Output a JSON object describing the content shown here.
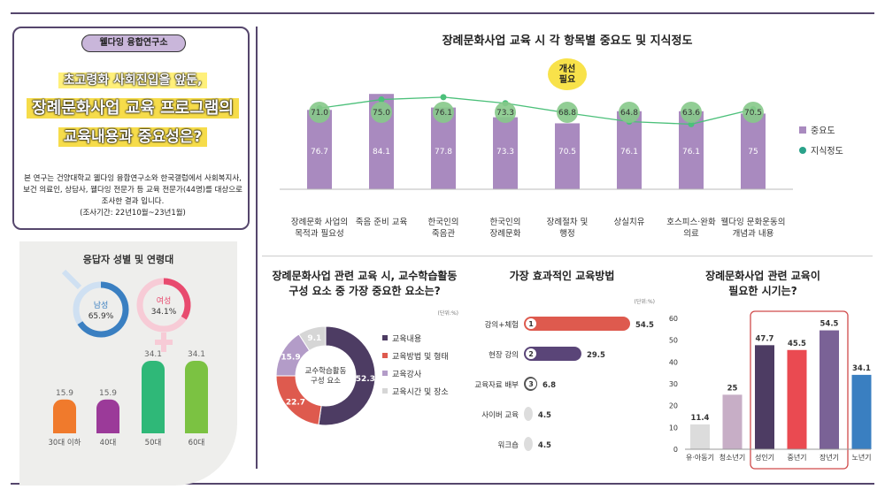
{
  "intro": {
    "badge": "웰다잉 융합연구소",
    "headline1": "초고령화 사회진입을 앞둔,",
    "headline2": "장례문화사업 교육 프로그램의",
    "headline3": "교육내용과 중요성은?",
    "description1": "본 연구는 건양대학교 웰다잉 융합연구소와 한국갤럽에서 사회복지사,",
    "description2": "보건 의료인, 상담사, 웰다잉 전문가 등 교육 전문가(44명)를 대상으로",
    "description3": "조사한 결과 입니다.",
    "period": "(조사기간: 22년10월~23년1월)"
  },
  "colors": {
    "frame": "#55466c",
    "importance": "#a98abf",
    "knowledge": "#4cc07a",
    "knowledge_dot": "#86c98a"
  },
  "chart_data": [
    {
      "type": "bar",
      "title": "장례문화사업 교육 시 각 항목별 중요도 및 지식정도",
      "categories": [
        "장례문화 사업의\n목적과 필요성",
        "죽음 준비 교육",
        "한국인의\n죽음관",
        "한국인의\n장례문화",
        "장례절차 및\n행정",
        "상실치유",
        "호스피스·완화\n의료",
        "웰다잉 문화운동의\n개념과 내용"
      ],
      "series": [
        {
          "name": "중요도",
          "values": [
            76.7,
            84.1,
            77.8,
            73.3,
            70.5,
            76.1,
            76.1,
            75
          ]
        },
        {
          "name": "지식정도",
          "values": [
            71.0,
            75.0,
            76.1,
            73.3,
            68.8,
            64.8,
            63.6,
            70.5
          ]
        }
      ],
      "callout": "개선\n필요",
      "callout_category": "장례절차 및\n행정",
      "legend": "right",
      "ylim": [
        0,
        100
      ]
    },
    {
      "type": "pie",
      "title": "장례문화사업 관련 교육 시, 교수학습활동\n구성 요소 중 가장 중요한 요소는?",
      "unit": "(단위:%)",
      "center_label": "교수학습활동\n구성 요소",
      "labels": [
        "교육내용",
        "교육방법 및 형태",
        "교육강사",
        "교육시간 및 장소"
      ],
      "values": [
        52.3,
        22.7,
        15.9,
        9.1
      ],
      "colors": [
        "#4d3c63",
        "#de5a4e",
        "#b39cc8",
        "#d6d6d6"
      ]
    },
    {
      "type": "bar",
      "orientation": "horizontal",
      "title": "가장 효과적인 교육방법",
      "unit": "(단위:%)",
      "categories": [
        "강의+체험",
        "현장 강의",
        "교육자료 배부",
        "사이버 교육",
        "워크숍"
      ],
      "values": [
        54.5,
        29.5,
        6.8,
        4.5,
        4.5
      ],
      "ranks": [
        "1",
        "2",
        "3",
        "",
        ""
      ],
      "colors": [
        "#de5a4e",
        "#5a4578",
        "#555555",
        "#dddddd",
        "#dddddd"
      ]
    },
    {
      "type": "bar",
      "title": "장례문화사업 관련 교육이\n필요한 시기는?",
      "categories": [
        "유·아동기",
        "청소년기",
        "성인기",
        "중년기",
        "장년기",
        "노년기"
      ],
      "values": [
        11.4,
        25,
        47.7,
        45.5,
        54.5,
        34.1
      ],
      "colors": [
        "#dcdcdc",
        "#c7aec6",
        "#4d3c63",
        "#ea4a51",
        "#7a6296",
        "#3a7fc1"
      ],
      "highlight": [
        "성인기",
        "중년기",
        "장년기"
      ],
      "ylim": [
        0,
        60
      ],
      "yticks": [
        0,
        10,
        20,
        30,
        40,
        50,
        60
      ]
    },
    {
      "type": "bar",
      "title": "응답자 성별 및 연령대",
      "gender": [
        {
          "label": "남성",
          "value": 65.9,
          "display": "65.9%",
          "color": "#3a7fc1"
        },
        {
          "label": "여성",
          "value": 34.1,
          "display": "34.1%",
          "color": "#e84a6e"
        }
      ],
      "categories": [
        "30대 이하",
        "40대",
        "50대",
        "60대"
      ],
      "values": [
        15.9,
        15.9,
        34.1,
        34.1
      ],
      "colors": [
        "#f07a2c",
        "#9b3a99",
        "#2fb878",
        "#7bc242"
      ]
    }
  ]
}
